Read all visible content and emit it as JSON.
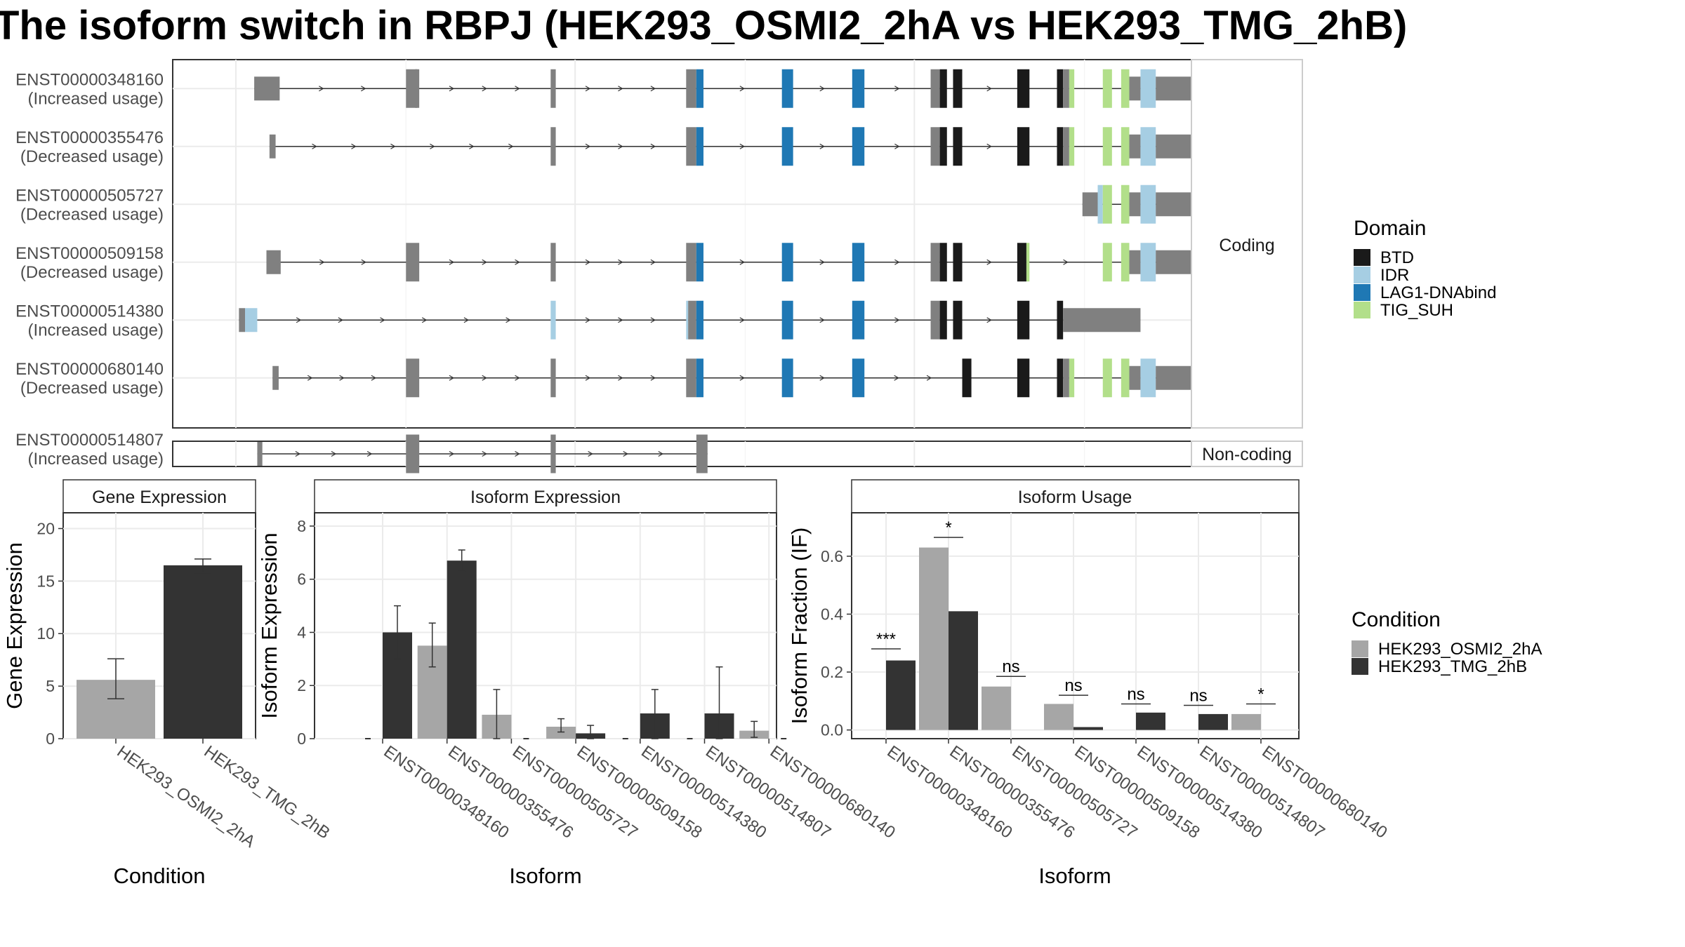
{
  "title": "The isoform switch in RBPJ (HEK293_OSMI2_2hA vs HEK293_TMG_2hB)",
  "colors": {
    "utr": "#808080",
    "BTD": "#1a1a1a",
    "IDR": "#a6cee3",
    "LAG1-DNAbind": "#1f78b4",
    "TIG_SUH": "#b2df8a",
    "cond_a": "#a6a6a6",
    "cond_b": "#333333",
    "panel_border": "#333333",
    "strip_fill": "#ffffff",
    "grid_major": "#ebebeb",
    "grid_minor": "#f5f5f5",
    "line": "#333333"
  },
  "structure": {
    "strip_coding": "Coding",
    "strip_noncoding": "Non-coding",
    "legend_title": "Domain",
    "legend": [
      "BTD",
      "IDR",
      "LAG1-DNAbind",
      "TIG_SUH"
    ],
    "coding": [
      {
        "id": "ENST00000348160",
        "usage": "(Increased usage)",
        "start": 80,
        "end": 1060,
        "exons": [
          [
            80,
            105,
            "utr"
          ],
          [
            229,
            240,
            "utr"
          ],
          [
            238,
            242,
            "utr"
          ],
          [
            371,
            376,
            "utr"
          ],
          [
            504,
            514,
            "utr"
          ],
          [
            514,
            521,
            "LAG1-DNAbind"
          ],
          [
            598,
            609,
            "LAG1-DNAbind"
          ],
          [
            667,
            679,
            "LAG1-DNAbind"
          ],
          [
            744,
            753,
            "utr"
          ],
          [
            753,
            760,
            "BTD"
          ],
          [
            766,
            775,
            "BTD"
          ],
          [
            829,
            841,
            "BTD"
          ],
          [
            868,
            874,
            "BTD"
          ],
          [
            874,
            880,
            "utr"
          ],
          [
            880,
            885,
            "TIG_SUH"
          ],
          [
            913,
            922,
            "TIG_SUH"
          ],
          [
            931,
            939,
            "TIG_SUH"
          ],
          [
            939,
            950,
            "utr"
          ],
          [
            950,
            965,
            "IDR"
          ],
          [
            965,
            1020,
            "utr"
          ]
        ]
      },
      {
        "id": "ENST00000355476",
        "usage": "(Decreased usage)",
        "start": 95,
        "end": 1060,
        "exons": [
          [
            95,
            101,
            "utr"
          ],
          [
            371,
            376,
            "utr"
          ],
          [
            504,
            514,
            "utr"
          ],
          [
            514,
            521,
            "LAG1-DNAbind"
          ],
          [
            598,
            609,
            "LAG1-DNAbind"
          ],
          [
            667,
            679,
            "LAG1-DNAbind"
          ],
          [
            744,
            753,
            "utr"
          ],
          [
            753,
            760,
            "BTD"
          ],
          [
            766,
            775,
            "BTD"
          ],
          [
            829,
            841,
            "BTD"
          ],
          [
            868,
            874,
            "BTD"
          ],
          [
            874,
            880,
            "utr"
          ],
          [
            880,
            885,
            "TIG_SUH"
          ],
          [
            913,
            922,
            "TIG_SUH"
          ],
          [
            931,
            939,
            "TIG_SUH"
          ],
          [
            939,
            950,
            "utr"
          ],
          [
            950,
            965,
            "IDR"
          ],
          [
            965,
            1020,
            "utr"
          ]
        ]
      },
      {
        "id": "ENST00000505727",
        "usage": "(Decreased usage)",
        "start": 893,
        "end": 1060,
        "exons": [
          [
            893,
            908,
            "utr"
          ],
          [
            908,
            913,
            "IDR"
          ],
          [
            913,
            922,
            "TIG_SUH"
          ],
          [
            931,
            939,
            "TIG_SUH"
          ],
          [
            939,
            950,
            "utr"
          ],
          [
            950,
            965,
            "IDR"
          ],
          [
            965,
            1020,
            "utr"
          ]
        ]
      },
      {
        "id": "ENST00000509158",
        "usage": "(Decreased usage)",
        "start": 92,
        "end": 1060,
        "exons": [
          [
            92,
            106,
            "utr"
          ],
          [
            229,
            242,
            "utr"
          ],
          [
            371,
            376,
            "utr"
          ],
          [
            504,
            514,
            "utr"
          ],
          [
            514,
            521,
            "LAG1-DNAbind"
          ],
          [
            598,
            609,
            "LAG1-DNAbind"
          ],
          [
            667,
            679,
            "LAG1-DNAbind"
          ],
          [
            744,
            753,
            "utr"
          ],
          [
            753,
            760,
            "BTD"
          ],
          [
            766,
            775,
            "BTD"
          ],
          [
            829,
            838,
            "BTD"
          ],
          [
            838,
            841,
            "TIG_SUH"
          ],
          [
            913,
            922,
            "TIG_SUH"
          ],
          [
            931,
            939,
            "TIG_SUH"
          ],
          [
            939,
            950,
            "utr"
          ],
          [
            950,
            965,
            "IDR"
          ],
          [
            965,
            1020,
            "utr"
          ]
        ]
      },
      {
        "id": "ENST00000514380",
        "usage": "(Increased usage)",
        "start": 65,
        "end": 950,
        "exons": [
          [
            65,
            71,
            "utr"
          ],
          [
            71,
            83,
            "IDR"
          ],
          [
            371,
            376,
            "IDR"
          ],
          [
            504,
            506,
            "IDR"
          ],
          [
            506,
            514,
            "utr"
          ],
          [
            514,
            521,
            "LAG1-DNAbind"
          ],
          [
            598,
            609,
            "LAG1-DNAbind"
          ],
          [
            667,
            679,
            "LAG1-DNAbind"
          ],
          [
            744,
            753,
            "utr"
          ],
          [
            753,
            760,
            "BTD"
          ],
          [
            766,
            775,
            "BTD"
          ],
          [
            829,
            841,
            "BTD"
          ],
          [
            868,
            874,
            "BTD"
          ],
          [
            874,
            950,
            "utr"
          ]
        ]
      },
      {
        "id": "ENST00000680140",
        "usage": "(Decreased usage)",
        "start": 98,
        "end": 1060,
        "exons": [
          [
            98,
            104,
            "utr"
          ],
          [
            229,
            242,
            "utr"
          ],
          [
            371,
            376,
            "utr"
          ],
          [
            504,
            514,
            "utr"
          ],
          [
            514,
            521,
            "LAG1-DNAbind"
          ],
          [
            598,
            609,
            "LAG1-DNAbind"
          ],
          [
            667,
            679,
            "LAG1-DNAbind"
          ],
          [
            775,
            784,
            "BTD"
          ],
          [
            829,
            841,
            "BTD"
          ],
          [
            868,
            874,
            "BTD"
          ],
          [
            874,
            880,
            "utr"
          ],
          [
            880,
            885,
            "TIG_SUH"
          ],
          [
            913,
            922,
            "TIG_SUH"
          ],
          [
            931,
            939,
            "TIG_SUH"
          ],
          [
            939,
            950,
            "utr"
          ],
          [
            950,
            965,
            "IDR"
          ],
          [
            965,
            1020,
            "utr"
          ]
        ]
      }
    ],
    "noncoding": [
      {
        "id": "ENST00000514807",
        "usage": "(Increased usage)",
        "start": 83,
        "end": 525,
        "exons": [
          [
            83,
            88,
            "utr"
          ],
          [
            229,
            242,
            "utr"
          ],
          [
            371,
            376,
            "utr"
          ],
          [
            514,
            525,
            "utr"
          ]
        ]
      }
    ]
  },
  "chart_data": [
    {
      "type": "bar",
      "title": "Gene Expression",
      "xlabel": "Condition",
      "ylabel": "Gene Expression",
      "ylim": [
        0,
        21.5
      ],
      "yticks": [
        0,
        5,
        10,
        15,
        20
      ],
      "categories": [
        "HEK293_OSMI2_2hA",
        "HEK293_TMG_2hB"
      ],
      "values": [
        5.6,
        16.5
      ],
      "errors": [
        [
          3.8,
          7.6
        ],
        [
          15.8,
          17.1
        ]
      ]
    },
    {
      "type": "bar",
      "title": "Isoform Expression",
      "xlabel": "Isoform",
      "ylabel": "Isoform Expression",
      "ylim": [
        0,
        8.5
      ],
      "yticks": [
        0,
        2,
        4,
        6,
        8
      ],
      "categories": [
        "ENST00000348160",
        "ENST00000355476",
        "ENST00000505727",
        "ENST00000509158",
        "ENST00000514380",
        "ENST00000514807",
        "ENST00000680140"
      ],
      "series": [
        {
          "name": "HEK293_OSMI2_2hA",
          "values": [
            0.0,
            3.5,
            0.9,
            0.45,
            0.0,
            0.0,
            0.3
          ],
          "errors": [
            null,
            [
              2.7,
              4.35
            ],
            [
              0.0,
              1.85
            ],
            [
              0.25,
              0.75
            ],
            null,
            null,
            [
              0.05,
              0.65
            ]
          ]
        },
        {
          "name": "HEK293_TMG_2hB",
          "values": [
            4.0,
            6.7,
            0.0,
            0.2,
            0.95,
            0.95,
            0.0
          ],
          "errors": [
            [
              3.0,
              5.0
            ],
            [
              6.3,
              7.1
            ],
            null,
            [
              0.0,
              0.5
            ],
            [
              0.0,
              1.85
            ],
            [
              0.0,
              2.7
            ],
            null
          ]
        }
      ]
    },
    {
      "type": "bar",
      "title": "Isoform Usage",
      "xlabel": "Isoform",
      "ylabel": "Isoform Fraction (IF)",
      "ylim": [
        -0.03,
        0.75
      ],
      "yticks": [
        0.0,
        0.2,
        0.4,
        0.6
      ],
      "categories": [
        "ENST00000348160",
        "ENST00000355476",
        "ENST00000505727",
        "ENST00000509158",
        "ENST00000514380",
        "ENST00000514807",
        "ENST00000680140"
      ],
      "series": [
        {
          "name": "HEK293_OSMI2_2hA",
          "values": [
            0.0,
            0.63,
            0.15,
            0.09,
            0.0,
            0.0,
            0.055
          ]
        },
        {
          "name": "HEK293_TMG_2hB",
          "values": [
            0.24,
            0.41,
            0.0,
            0.01,
            0.06,
            0.055,
            0.0
          ]
        }
      ],
      "significance": [
        {
          "label": "***",
          "y": 0.28
        },
        {
          "label": "*",
          "y": 0.665
        },
        {
          "label": "ns",
          "y": 0.185
        },
        {
          "label": "ns",
          "y": 0.12
        },
        {
          "label": "ns",
          "y": 0.09
        },
        {
          "label": "ns",
          "y": 0.085
        },
        {
          "label": "*",
          "y": 0.09
        }
      ]
    }
  ],
  "condition_legend": {
    "title": "Condition",
    "items": [
      "HEK293_OSMI2_2hA",
      "HEK293_TMG_2hB"
    ]
  }
}
